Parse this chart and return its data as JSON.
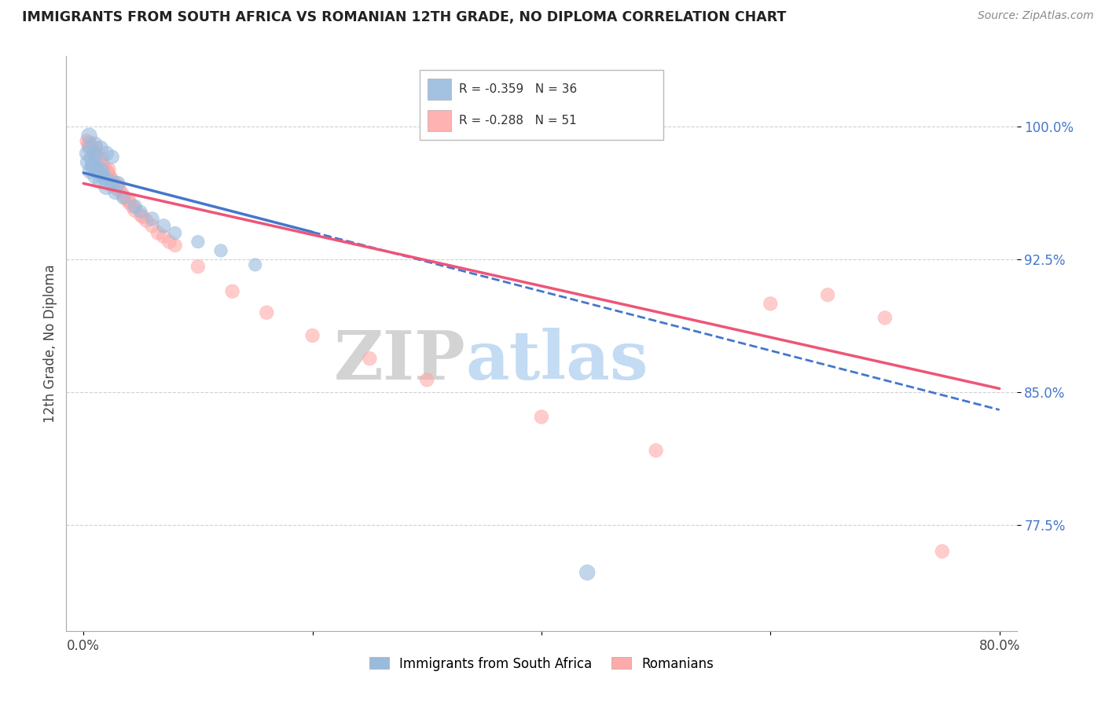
{
  "title": "IMMIGRANTS FROM SOUTH AFRICA VS ROMANIAN 12TH GRADE, NO DIPLOMA CORRELATION CHART",
  "source": "Source: ZipAtlas.com",
  "ylabel": "12th Grade, No Diploma",
  "legend_label_1": "Immigrants from South Africa",
  "legend_label_2": "Romanians",
  "R1": -0.359,
  "N1": 36,
  "R2": -0.288,
  "N2": 51,
  "color_blue": "#99BBDD",
  "color_pink": "#FFAAAA",
  "color_blue_line": "#4477CC",
  "color_pink_line": "#EE5577",
  "xlim": [
    -1.5,
    81.5
  ],
  "ylim": [
    0.715,
    1.04
  ],
  "x_ticks": [
    0,
    20,
    40,
    60,
    80
  ],
  "x_tick_labels": [
    "0.0%",
    "",
    "",
    "",
    "80.0%"
  ],
  "y_ticks": [
    1.0,
    0.925,
    0.85,
    0.775
  ],
  "y_tick_labels": [
    "100.0%",
    "92.5%",
    "85.0%",
    "77.5%"
  ],
  "sa_x": [
    0.5,
    1.0,
    1.5,
    2.0,
    2.5,
    0.8,
    1.2,
    1.7,
    2.2,
    3.0,
    0.6,
    1.0,
    1.4,
    2.0,
    2.8,
    0.4,
    0.9,
    1.3,
    1.8,
    2.5,
    3.5,
    4.5,
    5.0,
    6.0,
    7.0,
    8.0,
    10.0,
    12.0,
    15.0,
    0.3,
    0.7,
    1.1,
    1.6,
    0.5,
    1.0,
    44.0
  ],
  "sa_y": [
    0.995,
    0.99,
    0.988,
    0.985,
    0.983,
    0.978,
    0.975,
    0.973,
    0.97,
    0.968,
    0.975,
    0.972,
    0.969,
    0.966,
    0.963,
    0.98,
    0.977,
    0.974,
    0.971,
    0.967,
    0.96,
    0.955,
    0.952,
    0.948,
    0.944,
    0.94,
    0.935,
    0.93,
    0.922,
    0.985,
    0.982,
    0.979,
    0.976,
    0.988,
    0.984,
    0.748
  ],
  "sa_size": [
    200,
    200,
    180,
    180,
    160,
    200,
    180,
    160,
    160,
    180,
    200,
    180,
    160,
    200,
    180,
    200,
    180,
    160,
    160,
    180,
    160,
    160,
    140,
    160,
    160,
    140,
    140,
    140,
    140,
    180,
    180,
    160,
    160,
    160,
    160,
    200
  ],
  "ro_x": [
    0.3,
    0.6,
    0.9,
    1.2,
    1.5,
    1.8,
    2.1,
    2.4,
    2.7,
    3.0,
    3.5,
    4.0,
    4.5,
    5.0,
    6.0,
    7.0,
    8.0,
    0.4,
    0.8,
    1.1,
    1.4,
    1.7,
    2.0,
    2.3,
    2.6,
    2.9,
    3.3,
    3.8,
    4.3,
    5.5,
    6.5,
    0.5,
    1.0,
    1.6,
    2.2,
    3.0,
    4.0,
    5.2,
    7.5,
    10.0,
    13.0,
    16.0,
    20.0,
    25.0,
    30.0,
    40.0,
    50.0,
    60.0,
    65.0,
    70.0,
    75.0
  ],
  "ro_y": [
    0.992,
    0.989,
    0.986,
    0.983,
    0.98,
    0.977,
    0.974,
    0.971,
    0.968,
    0.965,
    0.961,
    0.957,
    0.953,
    0.95,
    0.944,
    0.938,
    0.933,
    0.99,
    0.987,
    0.984,
    0.981,
    0.978,
    0.975,
    0.972,
    0.969,
    0.966,
    0.963,
    0.959,
    0.955,
    0.947,
    0.94,
    0.991,
    0.988,
    0.982,
    0.976,
    0.967,
    0.958,
    0.949,
    0.935,
    0.921,
    0.907,
    0.895,
    0.882,
    0.869,
    0.857,
    0.836,
    0.817,
    0.9,
    0.905,
    0.892,
    0.76
  ],
  "ro_size": [
    160,
    160,
    180,
    180,
    160,
    160,
    180,
    160,
    180,
    200,
    160,
    160,
    180,
    160,
    160,
    160,
    160,
    160,
    160,
    160,
    160,
    160,
    180,
    160,
    160,
    160,
    160,
    160,
    160,
    160,
    160,
    160,
    200,
    160,
    160,
    160,
    160,
    160,
    160,
    160,
    160,
    160,
    160,
    160,
    160,
    160,
    160,
    160,
    160,
    160,
    160
  ],
  "line_sa_x0": 0.0,
  "line_sa_y0": 0.974,
  "line_sa_x1": 80.0,
  "line_sa_y1": 0.84,
  "line_sa_solid_end": 20.0,
  "line_ro_x0": 0.0,
  "line_ro_y0": 0.968,
  "line_ro_x1": 80.0,
  "line_ro_y1": 0.852
}
